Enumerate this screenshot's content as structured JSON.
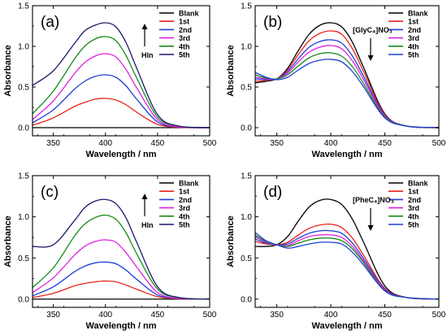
{
  "chart_data": [
    {
      "type": "line",
      "panel_label": "(a)",
      "xlabel": "Wavelength / nm",
      "ylabel": "Absorbance",
      "xlim": [
        330,
        500
      ],
      "ylim": [
        -0.1,
        1.5
      ],
      "xticks": [
        350,
        400,
        450,
        500
      ],
      "yticks": [
        0.0,
        0.5,
        1.0,
        1.5
      ],
      "arrow_direction": "up",
      "annotation": "HIn",
      "legend_position": "top-right",
      "series": [
        {
          "name": "Blank",
          "color": "#000000",
          "x": [
            330,
            350,
            370,
            380,
            390,
            400,
            410,
            420,
            430,
            450,
            470,
            500
          ],
          "y": [
            0.0,
            0.0,
            0.0,
            0.0,
            0.0,
            0.0,
            0.0,
            0.0,
            0.0,
            0.0,
            0.0,
            0.0
          ]
        },
        {
          "name": "1st",
          "color": "#e8231c",
          "x": [
            330,
            350,
            370,
            380,
            390,
            400,
            410,
            420,
            430,
            450,
            470,
            500
          ],
          "y": [
            0.03,
            0.12,
            0.26,
            0.31,
            0.35,
            0.36,
            0.34,
            0.28,
            0.19,
            0.04,
            0.005,
            0.0
          ]
        },
        {
          "name": "2nd",
          "color": "#1f3fd6",
          "x": [
            330,
            350,
            370,
            380,
            390,
            400,
            410,
            420,
            430,
            450,
            470,
            500
          ],
          "y": [
            0.06,
            0.22,
            0.47,
            0.57,
            0.63,
            0.65,
            0.62,
            0.51,
            0.35,
            0.07,
            0.01,
            0.0
          ]
        },
        {
          "name": "3rd",
          "color": "#e020e0",
          "x": [
            330,
            350,
            370,
            380,
            390,
            400,
            410,
            420,
            430,
            450,
            470,
            500
          ],
          "y": [
            0.1,
            0.33,
            0.66,
            0.8,
            0.88,
            0.91,
            0.87,
            0.71,
            0.49,
            0.1,
            0.01,
            0.0
          ]
        },
        {
          "name": "4th",
          "color": "#1a8a1a",
          "x": [
            330,
            350,
            370,
            380,
            390,
            400,
            410,
            420,
            430,
            450,
            470,
            500
          ],
          "y": [
            0.17,
            0.45,
            0.84,
            1.0,
            1.09,
            1.12,
            1.07,
            0.88,
            0.61,
            0.13,
            0.02,
            0.0
          ]
        },
        {
          "name": "5th",
          "color": "#1a1a6e",
          "x": [
            330,
            350,
            370,
            380,
            390,
            400,
            410,
            420,
            430,
            450,
            470,
            500
          ],
          "y": [
            0.52,
            0.7,
            1.03,
            1.19,
            1.26,
            1.29,
            1.24,
            1.04,
            0.73,
            0.16,
            0.02,
            0.0
          ]
        }
      ]
    },
    {
      "type": "line",
      "panel_label": "(b)",
      "xlabel": "Wavelength / nm",
      "ylabel": "Absorbance",
      "xlim": [
        330,
        500
      ],
      "ylim": [
        -0.1,
        1.5
      ],
      "xticks": [
        350,
        400,
        450,
        500
      ],
      "yticks": [
        0.0,
        0.5,
        1.0,
        1.5
      ],
      "arrow_direction": "down",
      "annotation": "[GlyC₄]NO₃",
      "legend_position": "top-right",
      "series": [
        {
          "name": "Blank",
          "color": "#000000",
          "x": [
            330,
            340,
            350,
            360,
            370,
            380,
            390,
            400,
            410,
            420,
            430,
            450,
            470,
            500
          ],
          "y": [
            0.55,
            0.57,
            0.6,
            0.73,
            0.95,
            1.15,
            1.26,
            1.29,
            1.24,
            1.05,
            0.75,
            0.17,
            0.02,
            0.0
          ]
        },
        {
          "name": "1st",
          "color": "#e8231c",
          "x": [
            330,
            340,
            350,
            360,
            370,
            380,
            390,
            400,
            410,
            420,
            430,
            450,
            470,
            500
          ],
          "y": [
            0.57,
            0.58,
            0.6,
            0.71,
            0.9,
            1.07,
            1.16,
            1.19,
            1.15,
            0.97,
            0.7,
            0.16,
            0.02,
            0.0
          ]
        },
        {
          "name": "2nd",
          "color": "#1f3fd6",
          "x": [
            330,
            340,
            350,
            360,
            370,
            380,
            390,
            400,
            410,
            420,
            430,
            450,
            470,
            500
          ],
          "y": [
            0.6,
            0.59,
            0.6,
            0.69,
            0.85,
            0.99,
            1.06,
            1.08,
            1.04,
            0.88,
            0.64,
            0.15,
            0.02,
            0.0
          ]
        },
        {
          "name": "3rd",
          "color": "#e020e0",
          "x": [
            330,
            340,
            350,
            360,
            370,
            380,
            390,
            400,
            410,
            420,
            430,
            450,
            470,
            500
          ],
          "y": [
            0.62,
            0.6,
            0.6,
            0.67,
            0.81,
            0.93,
            0.99,
            1.01,
            0.97,
            0.82,
            0.6,
            0.14,
            0.02,
            0.0
          ]
        },
        {
          "name": "4th",
          "color": "#1a8a1a",
          "x": [
            330,
            340,
            350,
            360,
            370,
            380,
            390,
            400,
            410,
            420,
            430,
            450,
            470,
            500
          ],
          "y": [
            0.65,
            0.61,
            0.6,
            0.65,
            0.76,
            0.86,
            0.91,
            0.92,
            0.88,
            0.75,
            0.55,
            0.13,
            0.02,
            0.0
          ]
        },
        {
          "name": "5th",
          "color": "#1f3fd6",
          "x": [
            330,
            340,
            350,
            360,
            370,
            380,
            390,
            400,
            410,
            420,
            430,
            450,
            470,
            500
          ],
          "y": [
            0.68,
            0.62,
            0.59,
            0.62,
            0.71,
            0.79,
            0.83,
            0.84,
            0.81,
            0.69,
            0.51,
            0.12,
            0.02,
            0.0
          ]
        }
      ]
    },
    {
      "type": "line",
      "panel_label": "(c)",
      "xlabel": "Wavelength / nm",
      "ylabel": "Absorbance",
      "xlim": [
        330,
        500
      ],
      "ylim": [
        -0.1,
        1.5
      ],
      "xticks": [
        350,
        400,
        450,
        500
      ],
      "yticks": [
        0.0,
        0.5,
        1.0,
        1.5
      ],
      "arrow_direction": "up",
      "annotation": "HIn",
      "legend_position": "top-right",
      "series": [
        {
          "name": "Blank",
          "color": "#000000",
          "x": [
            330,
            350,
            370,
            380,
            390,
            400,
            410,
            420,
            430,
            450,
            470,
            500
          ],
          "y": [
            0.0,
            0.0,
            0.0,
            0.0,
            0.0,
            0.0,
            0.0,
            0.0,
            0.0,
            0.0,
            0.0,
            0.0
          ]
        },
        {
          "name": "1st",
          "color": "#e8231c",
          "x": [
            330,
            350,
            370,
            380,
            390,
            400,
            410,
            420,
            430,
            450,
            470,
            500
          ],
          "y": [
            0.02,
            0.07,
            0.16,
            0.19,
            0.21,
            0.22,
            0.21,
            0.17,
            0.12,
            0.03,
            0.005,
            0.0
          ]
        },
        {
          "name": "2nd",
          "color": "#1f3fd6",
          "x": [
            330,
            350,
            370,
            380,
            390,
            400,
            410,
            420,
            430,
            450,
            470,
            500
          ],
          "y": [
            0.04,
            0.15,
            0.33,
            0.4,
            0.44,
            0.45,
            0.43,
            0.35,
            0.24,
            0.05,
            0.01,
            0.0
          ]
        },
        {
          "name": "3rd",
          "color": "#e020e0",
          "x": [
            330,
            350,
            370,
            380,
            390,
            400,
            410,
            420,
            430,
            450,
            470,
            500
          ],
          "y": [
            0.08,
            0.26,
            0.53,
            0.64,
            0.7,
            0.72,
            0.69,
            0.56,
            0.39,
            0.08,
            0.01,
            0.0
          ]
        },
        {
          "name": "4th",
          "color": "#1a8a1a",
          "x": [
            330,
            350,
            370,
            380,
            390,
            400,
            410,
            420,
            430,
            450,
            470,
            500
          ],
          "y": [
            0.14,
            0.38,
            0.76,
            0.91,
            0.99,
            1.02,
            0.97,
            0.8,
            0.55,
            0.12,
            0.02,
            0.0
          ]
        },
        {
          "name": "5th",
          "color": "#1a1a6e",
          "x": [
            330,
            350,
            370,
            380,
            390,
            400,
            410,
            420,
            430,
            450,
            470,
            500
          ],
          "y": [
            0.64,
            0.66,
            0.95,
            1.11,
            1.19,
            1.21,
            1.16,
            0.98,
            0.69,
            0.15,
            0.02,
            0.0
          ]
        }
      ]
    },
    {
      "type": "line",
      "panel_label": "(d)",
      "xlabel": "Wavelength / nm",
      "ylabel": "Absorbance",
      "xlim": [
        330,
        500
      ],
      "ylim": [
        -0.1,
        1.5
      ],
      "xticks": [
        350,
        400,
        450,
        500
      ],
      "yticks": [
        0.0,
        0.5,
        1.0,
        1.5
      ],
      "arrow_direction": "down",
      "annotation": "[PheC₄]NO₃",
      "legend_position": "top-right",
      "series": [
        {
          "name": "Blank",
          "color": "#000000",
          "x": [
            330,
            340,
            350,
            360,
            370,
            380,
            390,
            400,
            410,
            420,
            430,
            450,
            470,
            500
          ],
          "y": [
            0.64,
            0.64,
            0.66,
            0.76,
            0.95,
            1.12,
            1.2,
            1.21,
            1.15,
            0.97,
            0.7,
            0.16,
            0.02,
            0.0
          ]
        },
        {
          "name": "1st",
          "color": "#e8231c",
          "x": [
            330,
            340,
            350,
            360,
            370,
            380,
            390,
            400,
            410,
            420,
            430,
            450,
            470,
            500
          ],
          "y": [
            0.7,
            0.67,
            0.66,
            0.69,
            0.78,
            0.86,
            0.9,
            0.91,
            0.87,
            0.74,
            0.54,
            0.13,
            0.02,
            0.0
          ]
        },
        {
          "name": "2nd",
          "color": "#1f3fd6",
          "x": [
            330,
            340,
            350,
            360,
            370,
            380,
            390,
            400,
            410,
            420,
            430,
            450,
            470,
            500
          ],
          "y": [
            0.73,
            0.68,
            0.66,
            0.67,
            0.74,
            0.8,
            0.83,
            0.83,
            0.8,
            0.68,
            0.5,
            0.12,
            0.02,
            0.0
          ]
        },
        {
          "name": "3rd",
          "color": "#e020e0",
          "x": [
            330,
            340,
            350,
            360,
            370,
            380,
            390,
            400,
            410,
            420,
            430,
            450,
            470,
            500
          ],
          "y": [
            0.76,
            0.69,
            0.66,
            0.65,
            0.71,
            0.76,
            0.78,
            0.78,
            0.75,
            0.64,
            0.47,
            0.11,
            0.02,
            0.0
          ]
        },
        {
          "name": "4th",
          "color": "#1a8a1a",
          "x": [
            330,
            340,
            350,
            360,
            370,
            380,
            390,
            400,
            410,
            420,
            430,
            450,
            470,
            500
          ],
          "y": [
            0.78,
            0.7,
            0.66,
            0.64,
            0.68,
            0.72,
            0.74,
            0.74,
            0.71,
            0.61,
            0.45,
            0.1,
            0.02,
            0.0
          ]
        },
        {
          "name": "5th",
          "color": "#1f3fd6",
          "x": [
            330,
            340,
            350,
            360,
            370,
            380,
            390,
            400,
            410,
            420,
            430,
            450,
            470,
            500
          ],
          "y": [
            0.81,
            0.71,
            0.66,
            0.62,
            0.64,
            0.67,
            0.69,
            0.69,
            0.67,
            0.57,
            0.42,
            0.1,
            0.02,
            0.0
          ]
        }
      ]
    }
  ]
}
